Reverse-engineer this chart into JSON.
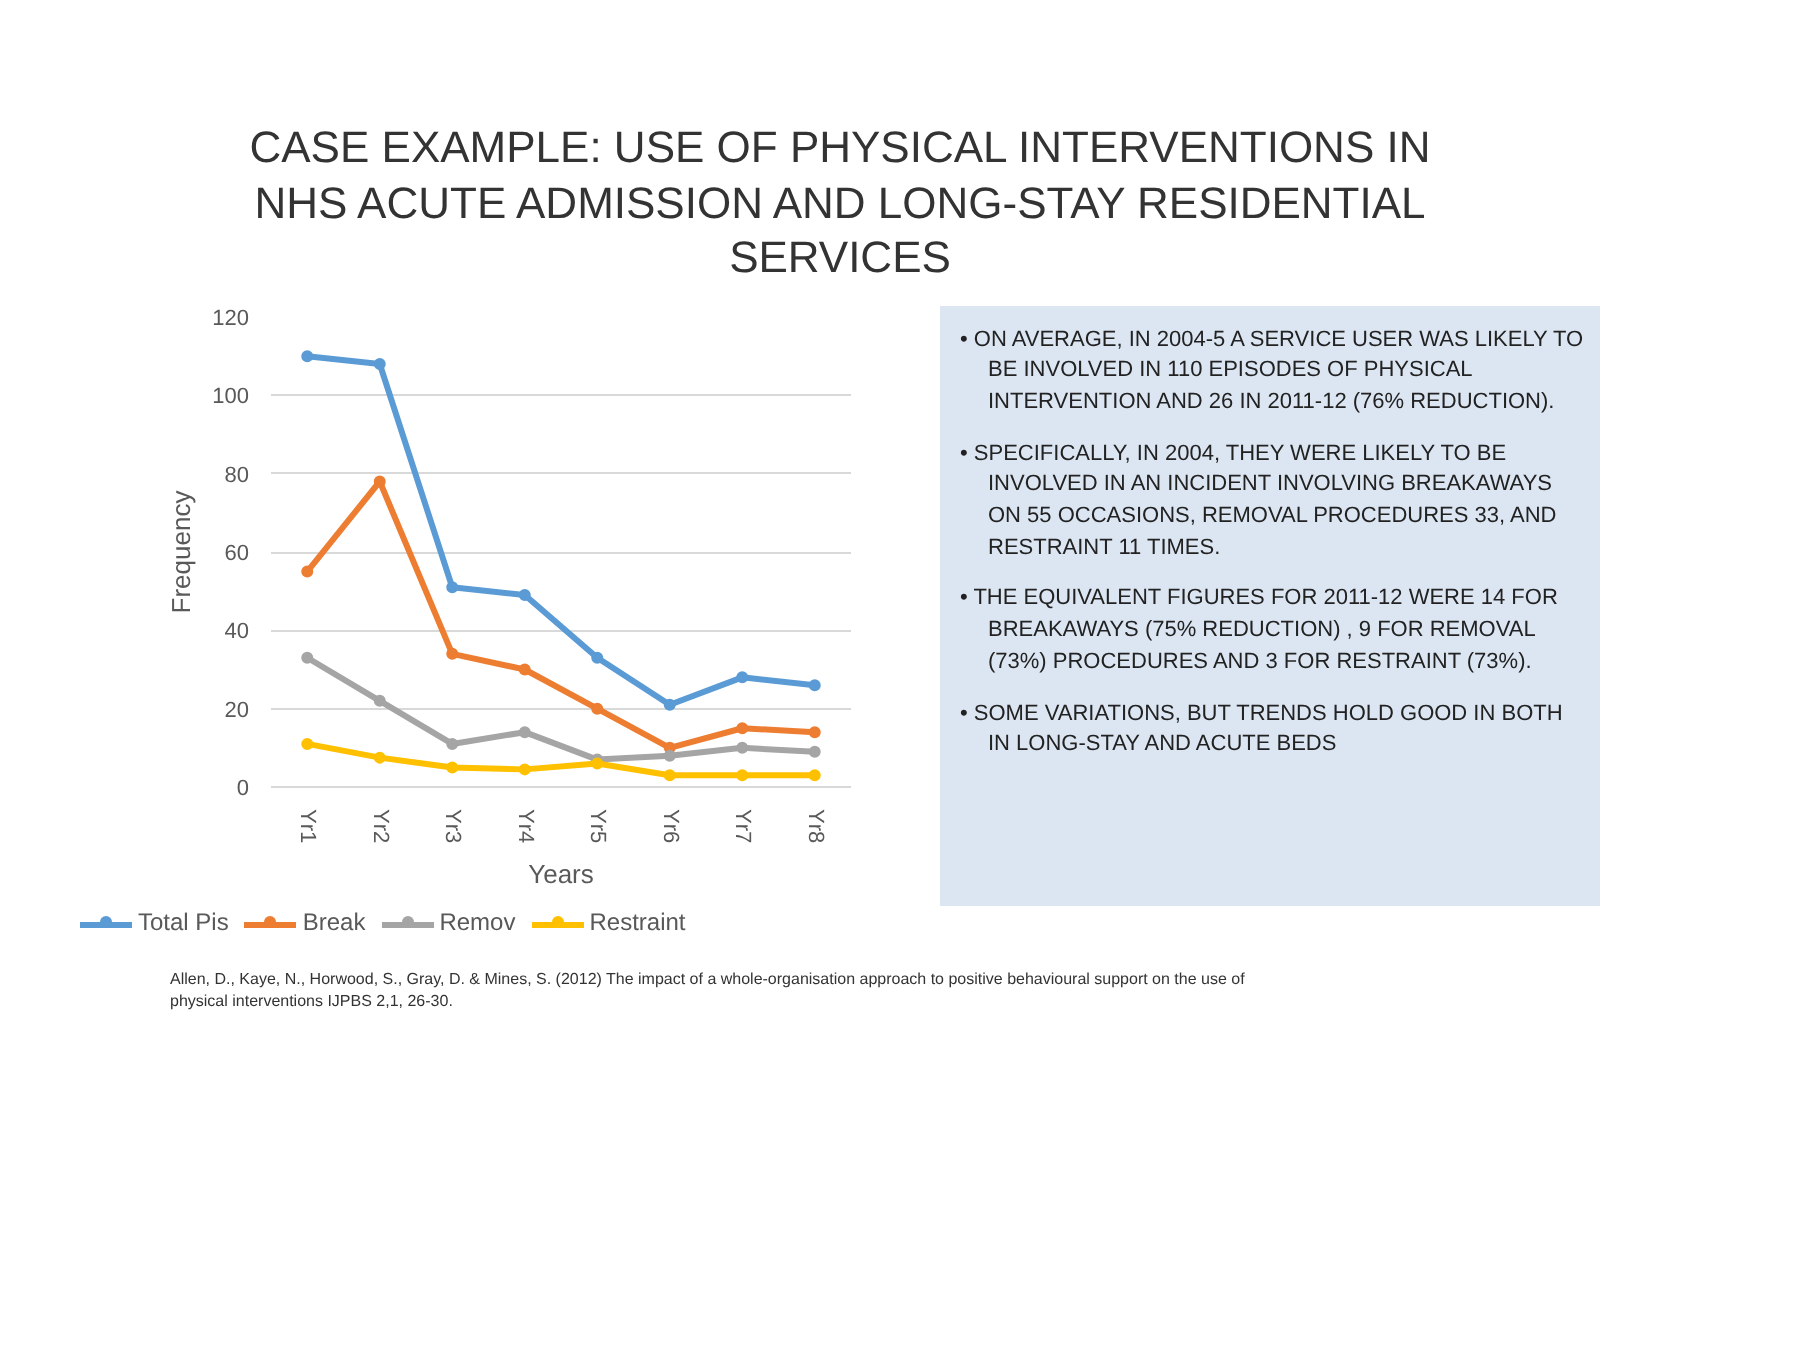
{
  "chart_data": {
    "type": "line",
    "title": "CASE EXAMPLE: USE OF PHYSICAL INTERVENTIONS IN NHS ACUTE ADMISSION AND LONG-STAY RESIDENTIAL SERVICES",
    "xlabel": "Years",
    "ylabel": "Frequency",
    "categories": [
      "Yr1",
      "Yr2",
      "Yr3",
      "Yr4",
      "Yr5",
      "Yr6",
      "Yr7",
      "Yr8"
    ],
    "series": [
      {
        "name": "Total Pis",
        "color": "#5b9bd5",
        "values": [
          110,
          108,
          51,
          49,
          33,
          21,
          28,
          26
        ]
      },
      {
        "name": "Break",
        "color": "#ed7d31",
        "values": [
          55,
          78,
          34,
          30,
          20,
          10,
          15,
          14
        ]
      },
      {
        "name": "Remov",
        "color": "#a5a5a5",
        "values": [
          33,
          22,
          11,
          14,
          7,
          8,
          10,
          9
        ]
      },
      {
        "name": "Restraint",
        "color": "#ffc000",
        "values": [
          11,
          7.5,
          5,
          4.5,
          6,
          3,
          3,
          3
        ]
      }
    ],
    "ylim": [
      0,
      120
    ],
    "yticks": [
      0,
      20,
      40,
      60,
      80,
      100,
      120
    ],
    "grid": "y",
    "legend": "bottom",
    "marker": "circle",
    "line_style": "solid",
    "annotations": [
      "• ON AVERAGE, IN 2004-5 A SERVICE USER WAS LIKELY TO BE INVOLVED IN 110 EPISODES OF PHYSICAL INTERVENTION AND 26 IN 2011-12 (76% REDUCTION).",
      "• SPECIFICALLY, IN 2004, THEY WERE LIKELY TO BE INVOLVED IN AN INCIDENT INVOLVING BREAKAWAYS ON 55 OCCASIONS, REMOVAL PROCEDURES 33, AND RESTRAINT 11 TIMES.",
      "• THE EQUIVALENT FIGURES FOR 2011-12 WERE 14 FOR BREAKAWAYS (75% REDUCTION) , 9 FOR REMOVAL (73%) PROCEDURES AND 3 FOR RESTRAINT (73%).",
      "• SOME VARIATIONS, BUT TRENDS HOLD GOOD IN BOTH IN LONG-STAY AND ACUTE BEDS",
      "Allen, D., Kaye, N., Horwood, S., Gray, D. & Mines, S. (2012) The impact of a whole-organisation approach to positive behavioural support on the use of physical interventions IJPBS 2,1, 26-30."
    ]
  }
}
